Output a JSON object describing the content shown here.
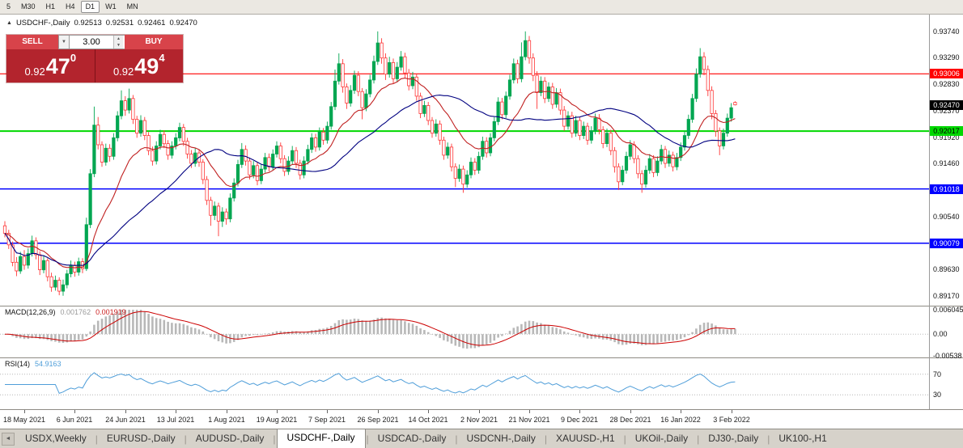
{
  "toolbar": {
    "timeframes": [
      "5",
      "M30",
      "H1",
      "H4",
      "D1",
      "W1",
      "MN"
    ],
    "active": "D1"
  },
  "icons": {
    "chart_marker": "▲",
    "volume_dropdown": "▼",
    "spin_up": "▲",
    "spin_down": "▼",
    "tab_scroll_left": "◄"
  },
  "symbol_header": {
    "title": "USDCHF-,Daily",
    "open": "0.92513",
    "high": "0.92531",
    "low": "0.92461",
    "close": "0.92470"
  },
  "trade_panel": {
    "sell_label": "SELL",
    "buy_label": "BUY",
    "volume": "3.00",
    "sell_price": {
      "prefix": "0.92",
      "main": "47",
      "pip": "0"
    },
    "buy_price": {
      "prefix": "0.92",
      "main": "49",
      "pip": "4"
    }
  },
  "colors": {
    "trade_button": "#d8434a",
    "price_panel": "#b3242d",
    "up": "#00a651",
    "down": "#ff3535",
    "level_red": "#ff0000",
    "level_green": "#00d800",
    "level_blue": "#0000ff"
  },
  "price_axis": {
    "ticks": [
      "0.93740",
      "0.93290",
      "0.92830",
      "0.92370",
      "0.91920",
      "0.91460",
      "0.91010",
      "0.90540",
      "0.90080",
      "0.89630",
      "0.89170"
    ],
    "badges": [
      {
        "value": "0.93006",
        "bg": "#ff0000",
        "fg": "#ffffff"
      },
      {
        "value": "0.92017",
        "bg": "#00d800",
        "fg": "#000000"
      },
      {
        "value": "0.91018",
        "bg": "#0000ff",
        "fg": "#ffffff"
      },
      {
        "value": "0.90079",
        "bg": "#0000ff",
        "fg": "#ffffff"
      }
    ],
    "current": {
      "value": "0.92470",
      "bg": "#000000",
      "fg": "#ffffff"
    }
  },
  "macd_panel": {
    "name": "MACD(12,26,9)",
    "value": "0.001762",
    "signal_value": "0.001919",
    "axis": [
      "0.006045",
      "0.00",
      "-0.00538"
    ]
  },
  "rsi_panel": {
    "name": "RSI(14)",
    "value": "54.9163",
    "axis": [
      "70",
      "30"
    ]
  },
  "tabs": {
    "items": [
      "USDX,Weekly",
      "EURUSD-,Daily",
      "AUDUSD-,Daily",
      "USDCHF-,Daily",
      "USDCAD-,Daily",
      "USDCNH-,Daily",
      "XAUUSD-,H1",
      "UKOil-,Daily",
      "DJ30-,Daily",
      "UK100-,H1"
    ],
    "active_index": 3
  },
  "chart_data": {
    "type": "candlestick",
    "symbol": "USDCHF-",
    "timeframe": "Daily",
    "last_ohlc": {
      "open": 0.92513,
      "high": 0.92531,
      "low": 0.92461,
      "close": 0.9247
    },
    "price_range": [
      0.89,
      0.9403
    ],
    "up_color": "#00a651",
    "down_color": "#ff3535",
    "hlines": [
      {
        "price": 0.93006,
        "color": "#ff0000",
        "width": 1.2
      },
      {
        "price": 0.92017,
        "color": "#00d800",
        "width": 2
      },
      {
        "price": 0.91018,
        "color": "#0000ff",
        "width": 1.5
      },
      {
        "price": 0.90079,
        "color": "#0000ff",
        "width": 1.5
      }
    ],
    "ma": [
      {
        "type": "ema",
        "period": 16,
        "color": "#c02020"
      },
      {
        "type": "sma",
        "period": 34,
        "color": "#000080"
      }
    ],
    "macd": {
      "fast": 12,
      "slow": 26,
      "signal": 9,
      "hist_color": "#b8b8b8",
      "signal_color": "#cc0000",
      "range": [
        -0.00538,
        0.006045
      ]
    },
    "rsi": {
      "period": 14,
      "color": "#4f9ed9",
      "levels": [
        30,
        70
      ],
      "range": [
        5,
        95
      ]
    },
    "date_tick_indices": [
      5,
      18,
      31,
      44,
      57,
      70,
      83,
      96,
      109,
      122,
      135,
      148,
      161,
      174,
      187
    ],
    "date_tick_labels": [
      "18 May 2021",
      "6 Jun 2021",
      "24 Jun 2021",
      "13 Jul 2021",
      "1 Aug 2021",
      "19 Aug 2021",
      "7 Sep 2021",
      "26 Sep 2021",
      "14 Oct 2021",
      "2 Nov 2021",
      "21 Nov 2021",
      "9 Dec 2021",
      "28 Dec 2021",
      "16 Jan 2022",
      "3 Feb 2022"
    ],
    "candles": [
      [
        0.9038,
        0.9046,
        0.9018,
        0.9025
      ],
      [
        0.9025,
        0.9031,
        0.8998,
        0.9005
      ],
      [
        0.9005,
        0.9011,
        0.8968,
        0.8975
      ],
      [
        0.8975,
        0.8984,
        0.8951,
        0.896
      ],
      [
        0.896,
        0.8993,
        0.8955,
        0.8985
      ],
      [
        0.8985,
        0.8996,
        0.8962,
        0.897
      ],
      [
        0.897,
        0.8999,
        0.8964,
        0.899
      ],
      [
        0.899,
        0.9021,
        0.8985,
        0.9012
      ],
      [
        0.9012,
        0.9018,
        0.898,
        0.8988
      ],
      [
        0.8988,
        0.8994,
        0.8953,
        0.8962
      ],
      [
        0.8962,
        0.8987,
        0.8956,
        0.8978
      ],
      [
        0.8978,
        0.8982,
        0.8942,
        0.895
      ],
      [
        0.895,
        0.8957,
        0.8924,
        0.8932
      ],
      [
        0.8932,
        0.8952,
        0.8926,
        0.8944
      ],
      [
        0.8944,
        0.8949,
        0.8918,
        0.8925
      ],
      [
        0.8925,
        0.8945,
        0.8917,
        0.8936
      ],
      [
        0.8936,
        0.8962,
        0.893,
        0.8955
      ],
      [
        0.8955,
        0.8978,
        0.8949,
        0.897
      ],
      [
        0.897,
        0.8976,
        0.895,
        0.8958
      ],
      [
        0.8958,
        0.8983,
        0.8952,
        0.8976
      ],
      [
        0.8976,
        0.8982,
        0.8956,
        0.8964
      ],
      [
        0.8964,
        0.9052,
        0.896,
        0.904
      ],
      [
        0.904,
        0.9136,
        0.9034,
        0.9128
      ],
      [
        0.9128,
        0.9244,
        0.9122,
        0.9212
      ],
      [
        0.9212,
        0.9226,
        0.917,
        0.9178
      ],
      [
        0.9178,
        0.9184,
        0.914,
        0.9148
      ],
      [
        0.9148,
        0.918,
        0.9142,
        0.9172
      ],
      [
        0.9172,
        0.9179,
        0.9149,
        0.9158
      ],
      [
        0.9158,
        0.9198,
        0.9152,
        0.919
      ],
      [
        0.919,
        0.9236,
        0.9184,
        0.9228
      ],
      [
        0.9228,
        0.9272,
        0.9222,
        0.9254
      ],
      [
        0.9254,
        0.9262,
        0.9228,
        0.9238
      ],
      [
        0.9238,
        0.9275,
        0.9232,
        0.9258
      ],
      [
        0.9258,
        0.9264,
        0.9214,
        0.9222
      ],
      [
        0.9222,
        0.9228,
        0.919,
        0.9198
      ],
      [
        0.9198,
        0.9229,
        0.9192,
        0.922
      ],
      [
        0.922,
        0.9226,
        0.9186,
        0.9194
      ],
      [
        0.9194,
        0.92,
        0.916,
        0.9168
      ],
      [
        0.9168,
        0.9175,
        0.9142,
        0.915
      ],
      [
        0.915,
        0.9184,
        0.9144,
        0.9176
      ],
      [
        0.9176,
        0.9204,
        0.917,
        0.9196
      ],
      [
        0.9196,
        0.9203,
        0.9172,
        0.918
      ],
      [
        0.918,
        0.9186,
        0.9152,
        0.916
      ],
      [
        0.916,
        0.9184,
        0.9154,
        0.9176
      ],
      [
        0.9176,
        0.9198,
        0.917,
        0.919
      ],
      [
        0.919,
        0.9216,
        0.9184,
        0.9208
      ],
      [
        0.9208,
        0.9214,
        0.9176,
        0.9184
      ],
      [
        0.9184,
        0.919,
        0.9154,
        0.9162
      ],
      [
        0.9162,
        0.9169,
        0.9138,
        0.9146
      ],
      [
        0.9146,
        0.9172,
        0.914,
        0.9164
      ],
      [
        0.9164,
        0.917,
        0.914,
        0.9148
      ],
      [
        0.9148,
        0.9153,
        0.911,
        0.9118
      ],
      [
        0.9118,
        0.9124,
        0.9074,
        0.9082
      ],
      [
        0.9082,
        0.9088,
        0.9038,
        0.9056
      ],
      [
        0.9056,
        0.908,
        0.9048,
        0.9072
      ],
      [
        0.9072,
        0.9078,
        0.902,
        0.9046
      ],
      [
        0.9046,
        0.907,
        0.9036,
        0.9062
      ],
      [
        0.9062,
        0.9068,
        0.904,
        0.905
      ],
      [
        0.905,
        0.9094,
        0.9044,
        0.9086
      ],
      [
        0.9086,
        0.912,
        0.908,
        0.9112
      ],
      [
        0.9112,
        0.9152,
        0.9106,
        0.9144
      ],
      [
        0.9144,
        0.9181,
        0.9138,
        0.917
      ],
      [
        0.917,
        0.9177,
        0.9142,
        0.915
      ],
      [
        0.915,
        0.9156,
        0.9118,
        0.9126
      ],
      [
        0.9126,
        0.915,
        0.912,
        0.9142
      ],
      [
        0.9142,
        0.9148,
        0.9108,
        0.9116
      ],
      [
        0.9116,
        0.9144,
        0.911,
        0.9136
      ],
      [
        0.9136,
        0.9164,
        0.913,
        0.9156
      ],
      [
        0.9156,
        0.9163,
        0.9132,
        0.914
      ],
      [
        0.914,
        0.917,
        0.9134,
        0.9162
      ],
      [
        0.9162,
        0.9184,
        0.9156,
        0.9176
      ],
      [
        0.9176,
        0.9182,
        0.9146,
        0.9154
      ],
      [
        0.9154,
        0.916,
        0.9124,
        0.9132
      ],
      [
        0.9132,
        0.9158,
        0.9126,
        0.915
      ],
      [
        0.915,
        0.9176,
        0.9144,
        0.9168
      ],
      [
        0.9168,
        0.9174,
        0.9138,
        0.9146
      ],
      [
        0.9146,
        0.9152,
        0.9118,
        0.9126
      ],
      [
        0.9126,
        0.9158,
        0.912,
        0.915
      ],
      [
        0.915,
        0.9178,
        0.9144,
        0.917
      ],
      [
        0.917,
        0.9198,
        0.9164,
        0.919
      ],
      [
        0.919,
        0.9197,
        0.9166,
        0.9174
      ],
      [
        0.9174,
        0.9208,
        0.9168,
        0.92
      ],
      [
        0.92,
        0.9207,
        0.9178,
        0.9186
      ],
      [
        0.9186,
        0.9218,
        0.918,
        0.921
      ],
      [
        0.921,
        0.9252,
        0.9204,
        0.9244
      ],
      [
        0.9244,
        0.9308,
        0.9238,
        0.9288
      ],
      [
        0.9288,
        0.9336,
        0.9282,
        0.9318
      ],
      [
        0.9318,
        0.9326,
        0.9268,
        0.9278
      ],
      [
        0.9278,
        0.9284,
        0.924,
        0.925
      ],
      [
        0.925,
        0.9281,
        0.9244,
        0.9272
      ],
      [
        0.9272,
        0.9306,
        0.9266,
        0.9298
      ],
      [
        0.9298,
        0.9305,
        0.9262,
        0.927
      ],
      [
        0.927,
        0.9276,
        0.9222,
        0.9242
      ],
      [
        0.9242,
        0.9274,
        0.9236,
        0.9266
      ],
      [
        0.9266,
        0.9299,
        0.926,
        0.929
      ],
      [
        0.929,
        0.9332,
        0.9284,
        0.9322
      ],
      [
        0.9322,
        0.9374,
        0.9316,
        0.9354
      ],
      [
        0.9354,
        0.9362,
        0.9318,
        0.9328
      ],
      [
        0.9328,
        0.9336,
        0.929,
        0.93
      ],
      [
        0.93,
        0.933,
        0.9294,
        0.932
      ],
      [
        0.932,
        0.9327,
        0.9284,
        0.9292
      ],
      [
        0.9292,
        0.9321,
        0.9286,
        0.9312
      ],
      [
        0.9312,
        0.934,
        0.9306,
        0.933
      ],
      [
        0.933,
        0.9337,
        0.9294,
        0.9302
      ],
      [
        0.9302,
        0.9309,
        0.9272,
        0.928
      ],
      [
        0.928,
        0.9304,
        0.9274,
        0.9295
      ],
      [
        0.9295,
        0.9301,
        0.9254,
        0.9262
      ],
      [
        0.9262,
        0.9268,
        0.9224,
        0.9232
      ],
      [
        0.9232,
        0.9254,
        0.9226,
        0.9246
      ],
      [
        0.9246,
        0.9252,
        0.9212,
        0.922
      ],
      [
        0.922,
        0.9226,
        0.919,
        0.9198
      ],
      [
        0.9198,
        0.9222,
        0.9192,
        0.9214
      ],
      [
        0.9214,
        0.922,
        0.9178,
        0.9186
      ],
      [
        0.9186,
        0.9192,
        0.9152,
        0.916
      ],
      [
        0.916,
        0.9182,
        0.9154,
        0.9174
      ],
      [
        0.9174,
        0.918,
        0.9132,
        0.914
      ],
      [
        0.914,
        0.9146,
        0.9105,
        0.912
      ],
      [
        0.912,
        0.9144,
        0.9114,
        0.9136
      ],
      [
        0.9136,
        0.9142,
        0.9095,
        0.911
      ],
      [
        0.911,
        0.9134,
        0.9104,
        0.9126
      ],
      [
        0.9126,
        0.9156,
        0.912,
        0.9148
      ],
      [
        0.9148,
        0.9155,
        0.9126,
        0.9134
      ],
      [
        0.9134,
        0.9166,
        0.9128,
        0.9158
      ],
      [
        0.9158,
        0.9192,
        0.9152,
        0.9184
      ],
      [
        0.9184,
        0.9191,
        0.9156,
        0.9164
      ],
      [
        0.9164,
        0.9198,
        0.9158,
        0.919
      ],
      [
        0.919,
        0.9226,
        0.9184,
        0.9218
      ],
      [
        0.9218,
        0.926,
        0.9212,
        0.9252
      ],
      [
        0.9252,
        0.9259,
        0.9222,
        0.923
      ],
      [
        0.923,
        0.927,
        0.9224,
        0.9262
      ],
      [
        0.9262,
        0.9299,
        0.9256,
        0.929
      ],
      [
        0.929,
        0.9327,
        0.9284,
        0.9318
      ],
      [
        0.9318,
        0.9325,
        0.9284,
        0.9292
      ],
      [
        0.9292,
        0.9355,
        0.9286,
        0.933
      ],
      [
        0.933,
        0.9374,
        0.9324,
        0.9358
      ],
      [
        0.9358,
        0.9366,
        0.9318,
        0.9328
      ],
      [
        0.9328,
        0.9336,
        0.9288,
        0.9298
      ],
      [
        0.9298,
        0.9305,
        0.924,
        0.9268
      ],
      [
        0.9268,
        0.9296,
        0.9262,
        0.9288
      ],
      [
        0.9288,
        0.9295,
        0.925,
        0.9258
      ],
      [
        0.9258,
        0.9286,
        0.9252,
        0.9278
      ],
      [
        0.9278,
        0.9285,
        0.924,
        0.9248
      ],
      [
        0.9248,
        0.9276,
        0.9242,
        0.9268
      ],
      [
        0.9268,
        0.9275,
        0.923,
        0.9238
      ],
      [
        0.9238,
        0.9245,
        0.9202,
        0.921
      ],
      [
        0.921,
        0.9236,
        0.9204,
        0.9228
      ],
      [
        0.9228,
        0.9235,
        0.919,
        0.9198
      ],
      [
        0.9198,
        0.9228,
        0.9192,
        0.922
      ],
      [
        0.922,
        0.9226,
        0.9186,
        0.9194
      ],
      [
        0.9194,
        0.9218,
        0.9188,
        0.921
      ],
      [
        0.921,
        0.9216,
        0.9178,
        0.9186
      ],
      [
        0.9186,
        0.921,
        0.918,
        0.9202
      ],
      [
        0.9202,
        0.9232,
        0.9196,
        0.9224
      ],
      [
        0.9224,
        0.9231,
        0.9196,
        0.9204
      ],
      [
        0.9204,
        0.921,
        0.9172,
        0.918
      ],
      [
        0.918,
        0.9206,
        0.9174,
        0.9198
      ],
      [
        0.9198,
        0.9204,
        0.916,
        0.9168
      ],
      [
        0.9168,
        0.9174,
        0.913,
        0.914
      ],
      [
        0.914,
        0.9146,
        0.91,
        0.9114
      ],
      [
        0.9114,
        0.9142,
        0.9108,
        0.9134
      ],
      [
        0.9134,
        0.9166,
        0.9128,
        0.9158
      ],
      [
        0.9158,
        0.9186,
        0.9152,
        0.9178
      ],
      [
        0.9178,
        0.9184,
        0.9146,
        0.9154
      ],
      [
        0.9154,
        0.916,
        0.912,
        0.9128
      ],
      [
        0.9128,
        0.9134,
        0.9095,
        0.911
      ],
      [
        0.911,
        0.9142,
        0.9104,
        0.9134
      ],
      [
        0.9134,
        0.9162,
        0.9128,
        0.9154
      ],
      [
        0.9154,
        0.916,
        0.9122,
        0.913
      ],
      [
        0.913,
        0.9158,
        0.9124,
        0.915
      ],
      [
        0.915,
        0.9178,
        0.9144,
        0.917
      ],
      [
        0.917,
        0.9176,
        0.9138,
        0.9146
      ],
      [
        0.9146,
        0.9168,
        0.914,
        0.916
      ],
      [
        0.916,
        0.9166,
        0.9132,
        0.914
      ],
      [
        0.914,
        0.9164,
        0.9134,
        0.9156
      ],
      [
        0.9156,
        0.9182,
        0.915,
        0.9174
      ],
      [
        0.9174,
        0.9202,
        0.9168,
        0.9194
      ],
      [
        0.9194,
        0.923,
        0.9188,
        0.9222
      ],
      [
        0.9222,
        0.9266,
        0.9216,
        0.9258
      ],
      [
        0.9258,
        0.931,
        0.9252,
        0.93
      ],
      [
        0.93,
        0.9345,
        0.9294,
        0.933
      ],
      [
        0.933,
        0.9338,
        0.9298,
        0.9308
      ],
      [
        0.9308,
        0.9315,
        0.9262,
        0.9272
      ],
      [
        0.9272,
        0.9279,
        0.9222,
        0.9232
      ],
      [
        0.9232,
        0.9238,
        0.9192,
        0.9202
      ],
      [
        0.9202,
        0.9208,
        0.916,
        0.9176
      ],
      [
        0.9176,
        0.9206,
        0.917,
        0.9198
      ],
      [
        0.9198,
        0.9232,
        0.9192,
        0.9224
      ],
      [
        0.9224,
        0.925,
        0.9218,
        0.9242
      ],
      [
        0.92513,
        0.92531,
        0.92461,
        0.9247
      ]
    ]
  }
}
